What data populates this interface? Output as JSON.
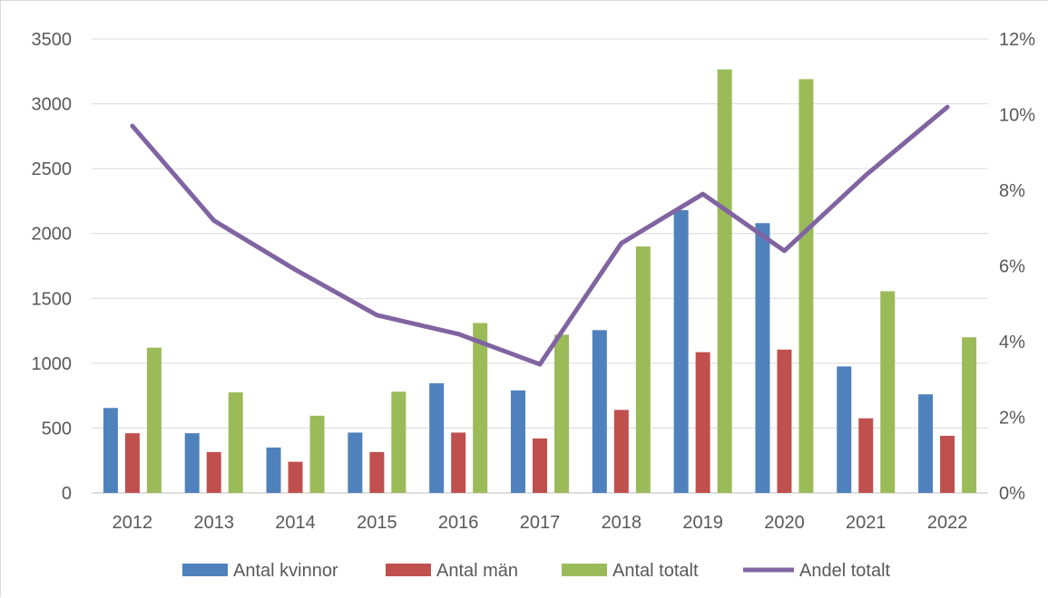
{
  "chart_data": {
    "type": "bar",
    "title": "",
    "xlabel": "",
    "ylabel": "",
    "categories": [
      "2012",
      "2013",
      "2014",
      "2015",
      "2016",
      "2017",
      "2018",
      "2019",
      "2020",
      "2021",
      "2022"
    ],
    "series": [
      {
        "name": "Antal kvinnor",
        "type": "bar",
        "axis": "left",
        "color": "#4f81bd",
        "values": [
          655,
          460,
          350,
          465,
          845,
          790,
          1255,
          2180,
          2080,
          975,
          760
        ]
      },
      {
        "name": "Antal män",
        "type": "bar",
        "axis": "left",
        "color": "#c0504d",
        "values": [
          460,
          315,
          240,
          315,
          465,
          420,
          640,
          1085,
          1105,
          575,
          440
        ]
      },
      {
        "name": "Antal totalt",
        "type": "bar",
        "axis": "left",
        "color": "#9bbb59",
        "values": [
          1120,
          775,
          595,
          780,
          1310,
          1220,
          1900,
          3265,
          3190,
          1555,
          1200
        ]
      },
      {
        "name": "Andel totalt",
        "type": "line",
        "axis": "right",
        "color": "#8064a2",
        "values": [
          9.7,
          7.2,
          5.9,
          4.7,
          4.2,
          3.4,
          6.6,
          7.9,
          6.4,
          8.4,
          10.2
        ]
      }
    ],
    "ylim": [
      0,
      3500
    ],
    "y_ticks": [
      "0",
      "500",
      "1000",
      "1500",
      "2000",
      "2500",
      "3000",
      "3500"
    ],
    "y2lim": [
      0,
      12
    ],
    "y2_ticks": [
      "0%",
      "2%",
      "4%",
      "6%",
      "8%",
      "10%",
      "12%"
    ],
    "grid": true,
    "legend_position": "bottom"
  }
}
